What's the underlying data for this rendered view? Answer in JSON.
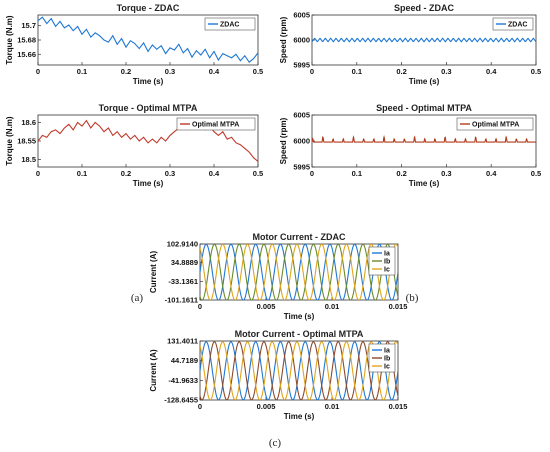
{
  "panel_labels": [
    "(a)",
    "(b)",
    "(c)"
  ],
  "chart_data": [
    {
      "id": "torque-zdac",
      "type": "line",
      "title": "Torque - ZDAC",
      "xlabel": "Time (s)",
      "ylabel": "Torque (N.m)",
      "xlim": [
        0,
        0.5
      ],
      "ylim": [
        15.645,
        15.715
      ],
      "xticks": [
        "0",
        "0.1",
        "0.2",
        "0.3",
        "0.4",
        "0.5"
      ],
      "yticks": [
        "15.66",
        "15.68",
        "15.7"
      ],
      "ytick_values": [
        15.66,
        15.68,
        15.7
      ],
      "legend": "top-right",
      "series": [
        {
          "name": "ZDAC",
          "color": "#1f77d4",
          "x": [
            0,
            0.01,
            0.02,
            0.03,
            0.04,
            0.05,
            0.06,
            0.07,
            0.08,
            0.09,
            0.1,
            0.11,
            0.12,
            0.13,
            0.14,
            0.15,
            0.16,
            0.17,
            0.18,
            0.19,
            0.2,
            0.21,
            0.22,
            0.23,
            0.24,
            0.25,
            0.26,
            0.27,
            0.28,
            0.29,
            0.3,
            0.31,
            0.32,
            0.33,
            0.34,
            0.35,
            0.36,
            0.37,
            0.38,
            0.39,
            0.4,
            0.41,
            0.42,
            0.43,
            0.44,
            0.45,
            0.46,
            0.47,
            0.48,
            0.49,
            0.5
          ],
          "y": [
            15.707,
            15.712,
            15.703,
            15.71,
            15.699,
            15.706,
            15.697,
            15.701,
            15.693,
            15.699,
            15.688,
            15.695,
            15.684,
            15.69,
            15.686,
            15.68,
            15.677,
            15.686,
            15.674,
            15.682,
            15.67,
            15.679,
            15.675,
            15.668,
            15.676,
            15.664,
            15.673,
            15.667,
            15.672,
            15.661,
            15.669,
            15.666,
            15.674,
            15.662,
            15.668,
            15.656,
            15.665,
            15.659,
            15.667,
            15.655,
            15.664,
            15.652,
            15.661,
            15.658,
            15.655,
            15.66,
            15.651,
            15.658,
            15.649,
            15.654,
            15.662
          ]
        }
      ]
    },
    {
      "id": "speed-zdac",
      "type": "line",
      "title": "Speed - ZDAC",
      "xlabel": "Time (s)",
      "ylabel": "Speed (rpm)",
      "xlim": [
        0,
        0.5
      ],
      "ylim": [
        5995,
        6005
      ],
      "xticks": [
        "0",
        "0.1",
        "0.2",
        "0.3",
        "0.4",
        "0.5"
      ],
      "yticks": [
        "5995",
        "6000",
        "6005"
      ],
      "ytick_values": [
        5995,
        6000,
        6005
      ],
      "legend": "top-right",
      "series": [
        {
          "name": "ZDAC",
          "color": "#1f77d4",
          "pattern": "triangle",
          "center": 6000,
          "amplitude": 0.35,
          "cycles": 42
        }
      ]
    },
    {
      "id": "torque-mtpa",
      "type": "line",
      "title": "Torque - Optimal MTPA",
      "xlabel": "Time (s)",
      "ylabel": "Torque (N.m)",
      "xlim": [
        0,
        0.5
      ],
      "ylim": [
        18.48,
        18.62
      ],
      "xticks": [
        "0",
        "0.1",
        "0.2",
        "0.3",
        "0.4",
        "0.5"
      ],
      "yticks": [
        "18.5",
        "18.55",
        "18.6"
      ],
      "ytick_values": [
        18.5,
        18.55,
        18.6
      ],
      "legend": "top-right",
      "series": [
        {
          "name": "Optimal MTPA",
          "color": "#c0392b",
          "x": [
            0,
            0.01,
            0.02,
            0.03,
            0.04,
            0.05,
            0.06,
            0.07,
            0.08,
            0.09,
            0.1,
            0.11,
            0.12,
            0.13,
            0.14,
            0.15,
            0.16,
            0.17,
            0.18,
            0.19,
            0.2,
            0.21,
            0.22,
            0.23,
            0.24,
            0.25,
            0.26,
            0.27,
            0.28,
            0.29,
            0.3,
            0.31,
            0.32,
            0.33,
            0.34,
            0.35,
            0.36,
            0.37,
            0.38,
            0.39,
            0.4,
            0.41,
            0.42,
            0.43,
            0.44,
            0.45,
            0.46,
            0.47,
            0.48,
            0.49,
            0.5
          ],
          "y": [
            18.55,
            18.565,
            18.56,
            18.575,
            18.58,
            18.57,
            18.585,
            18.595,
            18.58,
            18.6,
            18.59,
            18.605,
            18.585,
            18.6,
            18.59,
            18.575,
            18.585,
            18.565,
            18.575,
            18.56,
            18.57,
            18.555,
            18.565,
            18.55,
            18.56,
            18.545,
            18.555,
            18.545,
            18.56,
            18.55,
            18.565,
            18.575,
            18.585,
            18.6,
            18.59,
            18.6,
            18.585,
            18.595,
            18.58,
            18.59,
            18.575,
            18.565,
            18.575,
            18.555,
            18.56,
            18.545,
            18.54,
            18.53,
            18.52,
            18.505,
            18.495
          ]
        }
      ]
    },
    {
      "id": "speed-mtpa",
      "type": "line",
      "title": "Speed - Optimal MTPA",
      "xlabel": "Time (s)",
      "ylabel": "Speed (rpm)",
      "xlim": [
        0,
        0.5
      ],
      "ylim": [
        5995,
        6005
      ],
      "xticks": [
        "0",
        "0.1",
        "0.2",
        "0.3",
        "0.4",
        "0.5"
      ],
      "yticks": [
        "5995",
        "6000",
        "6005"
      ],
      "ytick_values": [
        5995,
        6000,
        6005
      ],
      "legend": "top-right",
      "series": [
        {
          "name": "Optimal MTPA",
          "color": "#b03a1a",
          "pattern": "pulse",
          "center": 5999.8,
          "amplitude": 0.6,
          "cycles": 22
        }
      ]
    },
    {
      "id": "current-zdac",
      "type": "line",
      "title": "Motor Current - ZDAC",
      "xlabel": "Time (s)",
      "ylabel": "Current (A)",
      "xlim": [
        0,
        0.015
      ],
      "ylim": [
        -101.1611,
        102.914
      ],
      "xticks": [
        "0",
        "0.005",
        "0.01",
        "0.015"
      ],
      "yticks": [
        "102.9140",
        "34.8889",
        "-33.1361",
        "-101.1611"
      ],
      "ytick_values": [
        102.914,
        34.8889,
        -33.1361,
        -101.1611
      ],
      "legend": "top-right",
      "series": [
        {
          "name": "Ia",
          "color": "#1f77d4",
          "pattern": "sine",
          "amplitude": 102,
          "cycles": 8,
          "phase_deg": 0
        },
        {
          "name": "Ib",
          "color": "#6a8b2a",
          "pattern": "sine",
          "amplitude": 102,
          "cycles": 8,
          "phase_deg": -120
        },
        {
          "name": "Ic",
          "color": "#e0a51c",
          "pattern": "sine",
          "amplitude": 102,
          "cycles": 8,
          "phase_deg": 120
        }
      ]
    },
    {
      "id": "current-mtpa",
      "type": "line",
      "title": "Motor Current - Optimal MTPA",
      "xlabel": "Time (s)",
      "ylabel": "Current (A)",
      "xlim": [
        0,
        0.015
      ],
      "ylim": [
        -128.6455,
        131.4011
      ],
      "xticks": [
        "0",
        "0.005",
        "0.01",
        "0.015"
      ],
      "yticks": [
        "131.4011",
        "44.7189",
        "-41.9633",
        "-128.6455"
      ],
      "ytick_values": [
        131.4011,
        44.7189,
        -41.9633,
        -128.6455
      ],
      "legend": "top-right",
      "series": [
        {
          "name": "Ia",
          "color": "#1f77d4",
          "pattern": "sine",
          "amplitude": 128,
          "cycles": 8,
          "phase_deg": 0
        },
        {
          "name": "Ib",
          "color": "#8b4a2b",
          "pattern": "sine",
          "amplitude": 128,
          "cycles": 8,
          "phase_deg": -120
        },
        {
          "name": "Ic",
          "color": "#e0a51c",
          "pattern": "sine",
          "amplitude": 128,
          "cycles": 8,
          "phase_deg": 120
        }
      ]
    }
  ]
}
